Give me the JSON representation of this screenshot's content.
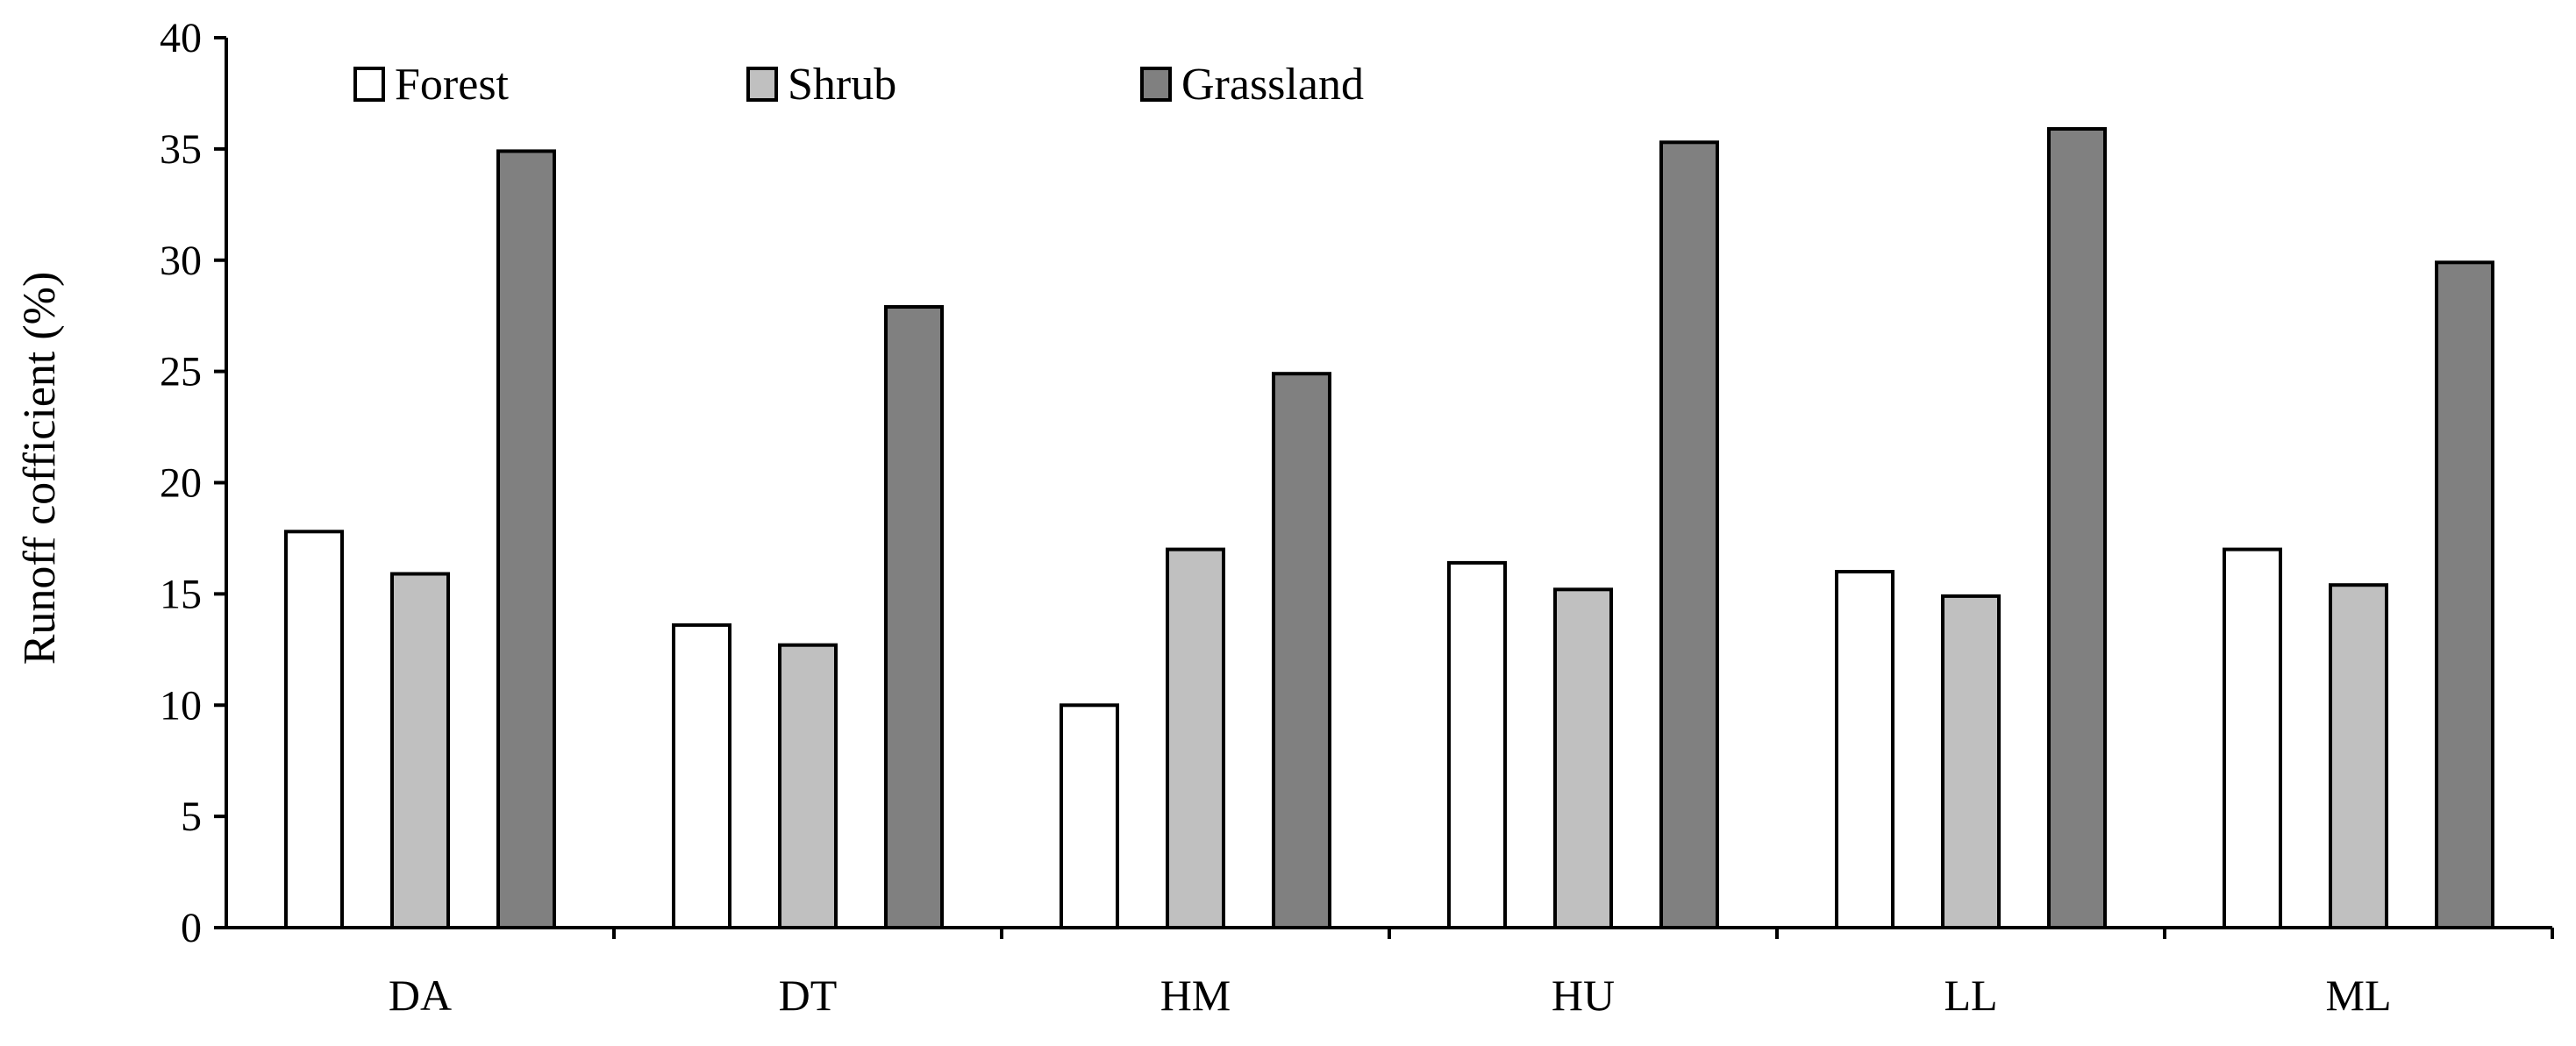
{
  "chart_data": {
    "type": "bar",
    "title": "",
    "xlabel": "",
    "ylabel": "Runoff cofficient (%)",
    "ylim": [
      0,
      40
    ],
    "yticks": [
      0,
      5,
      10,
      15,
      20,
      25,
      30,
      35,
      40
    ],
    "grid": false,
    "legend_position": "top-left",
    "categories": [
      "DA",
      "DT",
      "HM",
      "HU",
      "LL",
      "ML"
    ],
    "series": [
      {
        "name": "Forest",
        "color": "#ffffff",
        "values": [
          17.8,
          13.6,
          10.0,
          16.4,
          16.0,
          17.0
        ]
      },
      {
        "name": "Shrub",
        "color": "#c0c0c0",
        "values": [
          15.9,
          12.7,
          17.0,
          15.2,
          14.9,
          15.4
        ]
      },
      {
        "name": "Grassland",
        "color": "#808080",
        "values": [
          34.9,
          27.9,
          24.9,
          35.3,
          35.9,
          29.9
        ]
      }
    ]
  }
}
